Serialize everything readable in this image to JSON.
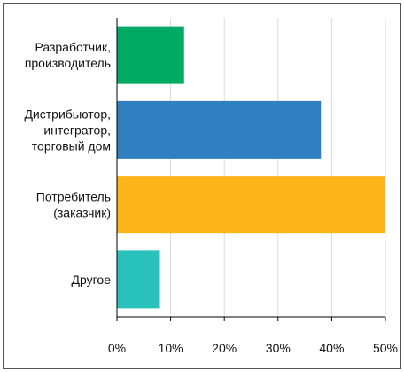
{
  "chart_data": {
    "type": "bar",
    "orientation": "horizontal",
    "categories": [
      [
        "Разработчик,",
        "производитель"
      ],
      [
        "Дистрибьютор,",
        "интегратор,",
        "торговый дом"
      ],
      [
        "Потребитель",
        "(заказчик)"
      ],
      [
        "Другое"
      ]
    ],
    "values": [
      12.5,
      38,
      50,
      8
    ],
    "colors": [
      "#00aa63",
      "#2f7fc1",
      "#fcb419",
      "#29c1bc"
    ],
    "xlim": [
      0,
      50
    ],
    "xticks": [
      "0%",
      "10%",
      "20%",
      "30%",
      "40%",
      "50%"
    ],
    "xtick_values": [
      0,
      10,
      20,
      30,
      40,
      50
    ],
    "grid": true,
    "legend": "none",
    "title": "",
    "xlabel": "",
    "ylabel": ""
  }
}
